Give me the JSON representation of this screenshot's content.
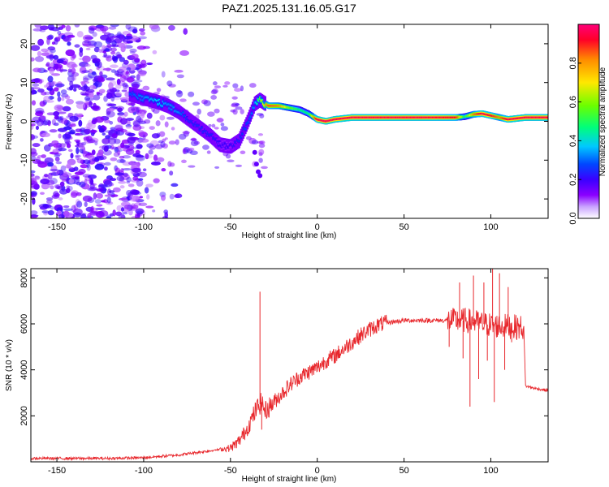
{
  "figure": {
    "title": "PAZ1.2025.131.16.05.G17"
  },
  "chart_data": [
    {
      "type": "heatmap",
      "id": "spectrogram",
      "xlabel": "Height of straight line (km)",
      "ylabel": "Frequency (Hz)",
      "xlim": [
        -165,
        133
      ],
      "ylim": [
        -25,
        25
      ],
      "xticks": [
        -150,
        -100,
        -50,
        0,
        50,
        100
      ],
      "xtick_labels": [
        "-150",
        "-100",
        "-50",
        "0",
        "50",
        "100"
      ],
      "yticks": [
        -20,
        -10,
        0,
        10,
        20
      ],
      "ytick_labels": [
        "-20",
        "-10",
        "0",
        "10",
        "20"
      ],
      "colorbar": {
        "label": "Normalized spectral amplitude",
        "range": [
          0,
          1
        ],
        "ticks": [
          0.0,
          0.2,
          0.4,
          0.6,
          0.8
        ],
        "tick_labels": [
          "0.0",
          "0.2",
          "0.4",
          "0.6",
          "0.8"
        ],
        "colormap": [
          "#ffffff",
          "#8a00ff",
          "#3a00ff",
          "#0048ff",
          "#00c8ff",
          "#00ff7a",
          "#6aff00",
          "#ffe800",
          "#ff8a00",
          "#ff0028",
          "#ff007a"
        ]
      },
      "ridge": {
        "x": [
          -108,
          -100,
          -92,
          -86,
          -80,
          -74,
          -68,
          -62,
          -56,
          -50,
          -45,
          -40,
          -36,
          -33,
          -28,
          -22,
          -16,
          -10,
          -5,
          0,
          5,
          10,
          20,
          40,
          60,
          80,
          85,
          90,
          95,
          100,
          105,
          110,
          120,
          133
        ],
        "freq": [
          7.0,
          6.0,
          5.0,
          4.0,
          2.5,
          0.5,
          -1.5,
          -3.5,
          -6.0,
          -6.5,
          -5.0,
          0.0,
          4.5,
          5.5,
          4.0,
          4.0,
          3.5,
          3.0,
          2.0,
          0.5,
          0.0,
          0.5,
          1.0,
          1.0,
          1.0,
          1.0,
          1.2,
          1.8,
          2.0,
          1.5,
          1.0,
          0.5,
          1.0,
          1.0
        ],
        "amplitude": [
          0.3,
          0.35,
          0.4,
          0.35,
          0.35,
          0.25,
          0.25,
          0.25,
          0.2,
          0.2,
          0.25,
          0.3,
          0.35,
          0.6,
          0.85,
          0.8,
          0.6,
          0.5,
          0.5,
          0.95,
          0.95,
          0.95,
          0.95,
          0.95,
          0.95,
          0.9,
          0.5,
          0.8,
          0.95,
          0.9,
          0.8,
          0.95,
          0.95,
          0.95
        ]
      },
      "noise_region_x": [
        -165,
        -100
      ],
      "noise_level": 0.15
    },
    {
      "type": "line",
      "id": "snr",
      "xlabel": "Height of straight line (km)",
      "ylabel": "SNR (10 * v/v)",
      "xlim": [
        -165,
        133
      ],
      "ylim": [
        0,
        8400
      ],
      "xticks": [
        -150,
        -100,
        -50,
        0,
        50,
        100
      ],
      "xtick_labels": [
        "-150",
        "-100",
        "-50",
        "0",
        "50",
        "100"
      ],
      "yticks": [
        2000,
        4000,
        6000,
        8000
      ],
      "ytick_labels": [
        "2000",
        "4000",
        "6000",
        "8000"
      ],
      "line_color": "#e8282d",
      "series": [
        {
          "x": [
            -165,
            -150,
            -120,
            -100,
            -80,
            -70,
            -60,
            -50,
            -45,
            -40,
            -35,
            -32,
            -30,
            -25,
            -20,
            -15,
            -10,
            -5,
            0,
            5,
            10,
            15,
            20,
            25,
            30,
            35,
            40,
            45,
            50,
            55,
            60,
            65,
            70,
            75,
            80,
            85,
            90,
            95,
            100,
            105,
            110,
            115,
            119,
            120,
            125,
            133
          ],
          "y": [
            150,
            150,
            150,
            180,
            300,
            400,
            500,
            600,
            900,
            1500,
            2300,
            2600,
            2200,
            2600,
            3000,
            3400,
            3700,
            3900,
            4100,
            4400,
            4600,
            4900,
            5200,
            5500,
            5750,
            5950,
            6050,
            6100,
            6150,
            6150,
            6150,
            6150,
            6150,
            6150,
            6150,
            6150,
            6100,
            6000,
            5950,
            5900,
            5900,
            5850,
            5850,
            3300,
            3200,
            3100
          ]
        }
      ],
      "spikes": [
        {
          "x": -33,
          "y": 7400
        },
        {
          "x": -32,
          "y": 1400
        },
        {
          "x": 76,
          "y": 5000
        },
        {
          "x": 82,
          "y": 7800
        },
        {
          "x": 84,
          "y": 4500
        },
        {
          "x": 88,
          "y": 2400
        },
        {
          "x": 90,
          "y": 8100
        },
        {
          "x": 93,
          "y": 3600
        },
        {
          "x": 96,
          "y": 7800
        },
        {
          "x": 98,
          "y": 4400
        },
        {
          "x": 101,
          "y": 8400
        },
        {
          "x": 102,
          "y": 2600
        },
        {
          "x": 105,
          "y": 8200
        },
        {
          "x": 108,
          "y": 4000
        },
        {
          "x": 110,
          "y": 7600
        },
        {
          "x": 112,
          "y": 5200
        }
      ]
    }
  ]
}
